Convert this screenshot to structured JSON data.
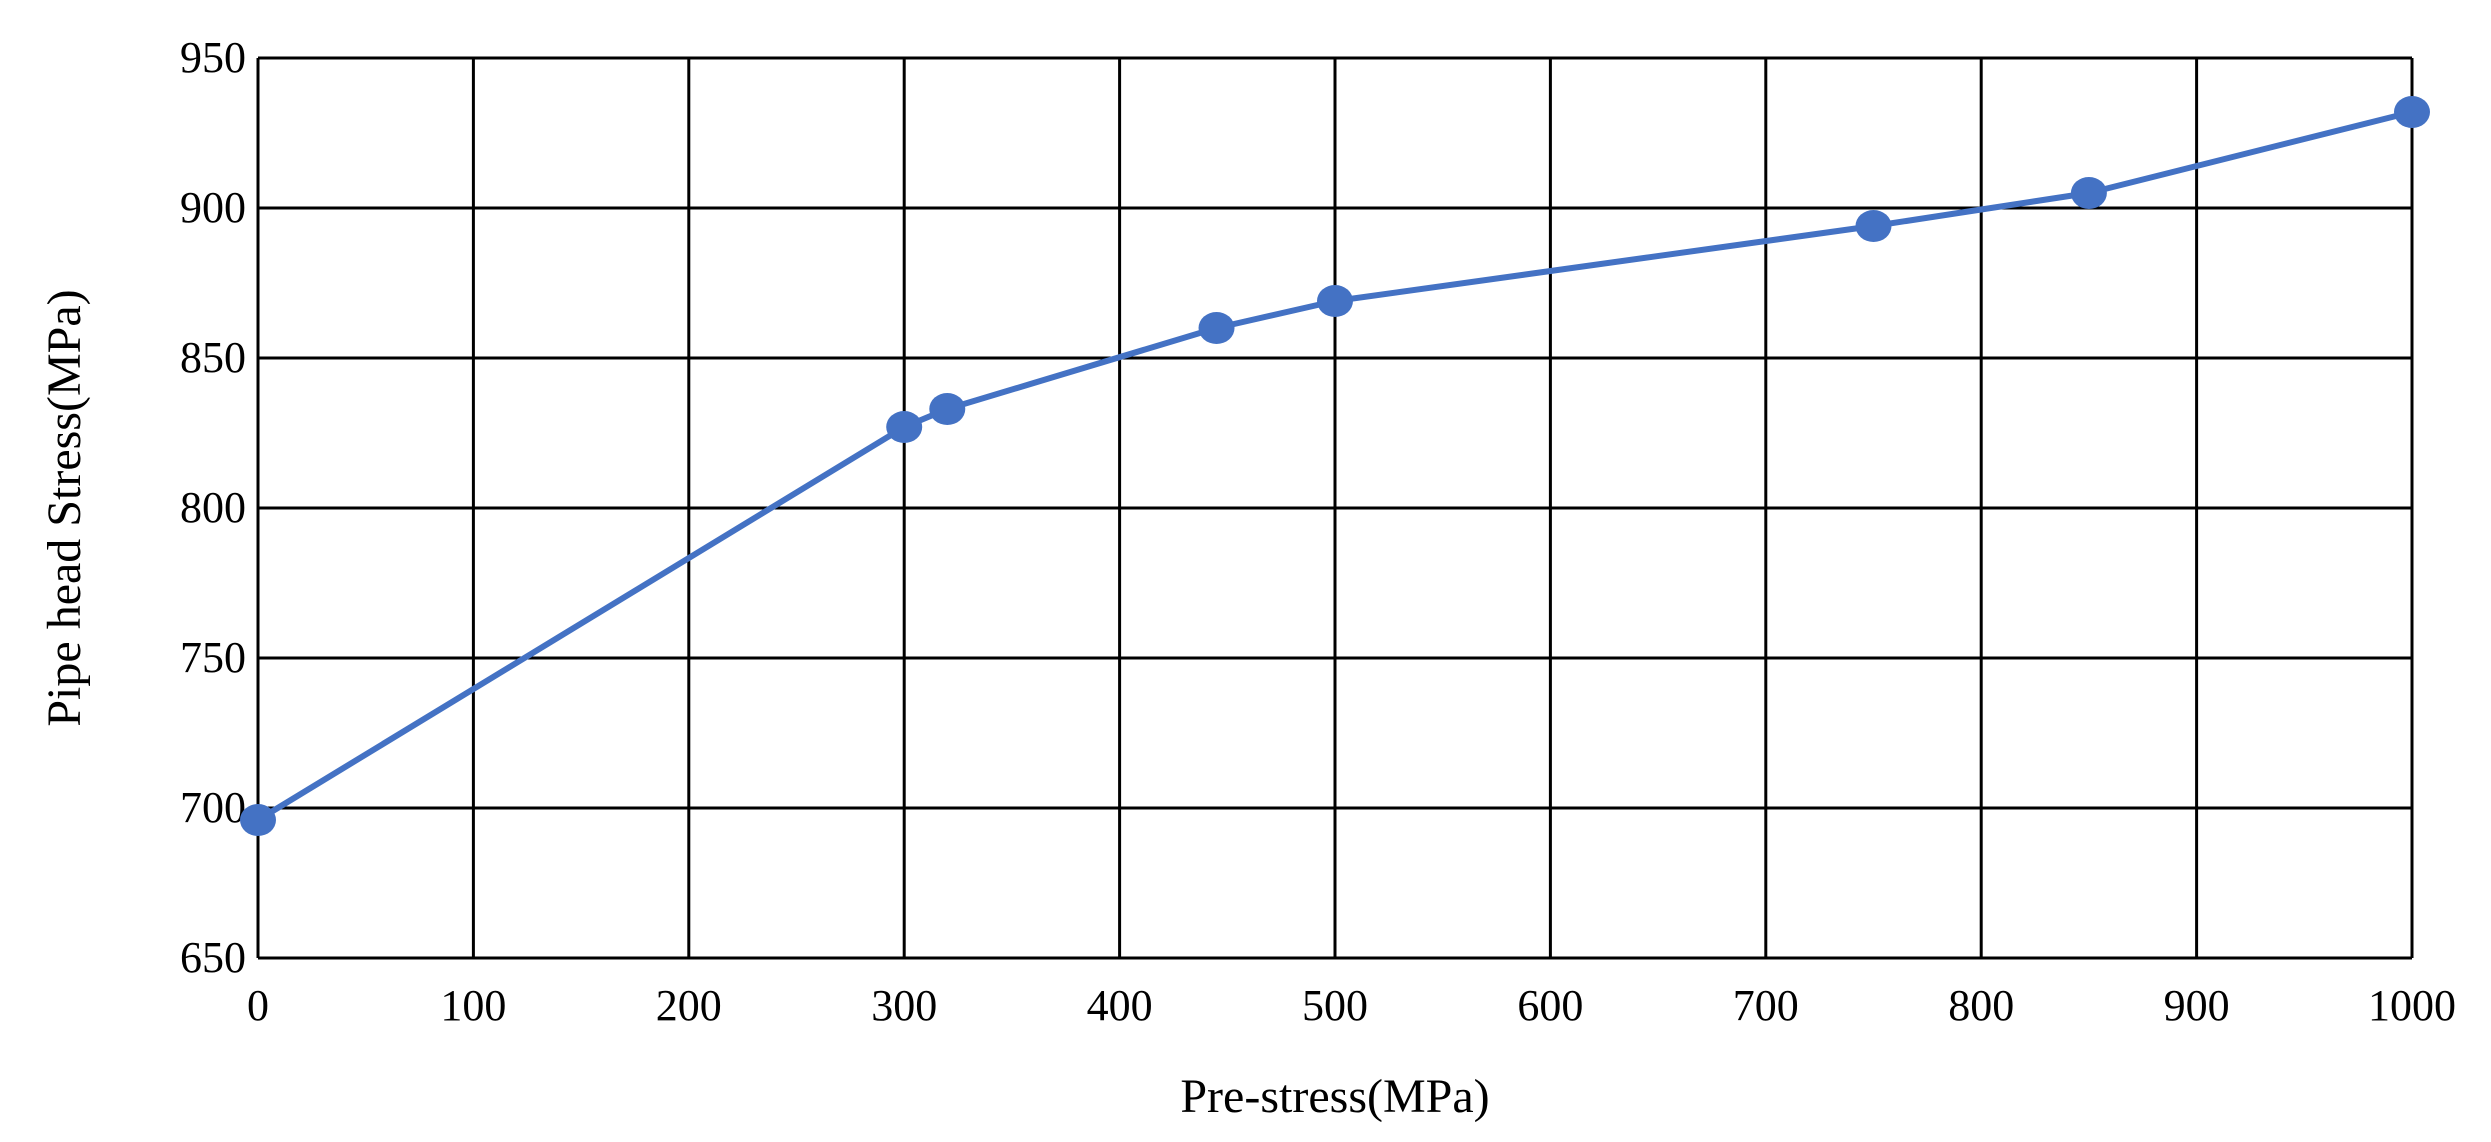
{
  "chart_data": {
    "type": "line",
    "title": "",
    "xlabel": "Pre-stress(MPa)",
    "ylabel": "Pipe head Stress(MPa)",
    "xlim": [
      0,
      1000
    ],
    "ylim": [
      650,
      950
    ],
    "x_ticks": [
      0,
      100,
      200,
      300,
      400,
      500,
      600,
      700,
      800,
      900,
      1000
    ],
    "y_ticks": [
      650,
      700,
      750,
      800,
      850,
      900,
      950
    ],
    "x_tick_labels": [
      "0",
      "100",
      "200",
      "300",
      "400",
      "500",
      "600",
      "700",
      "800",
      "900",
      "1000"
    ],
    "y_tick_labels": [
      "650",
      "700",
      "750",
      "800",
      "850",
      "900",
      "950"
    ],
    "grid": true,
    "legend": "none",
    "series": [
      {
        "color": "#4472C4",
        "marker": "circle",
        "x": [
          0,
          300,
          320,
          445,
          500,
          750,
          850,
          1000
        ],
        "y": [
          696,
          827,
          833,
          860,
          869,
          894,
          905,
          932
        ]
      }
    ]
  }
}
